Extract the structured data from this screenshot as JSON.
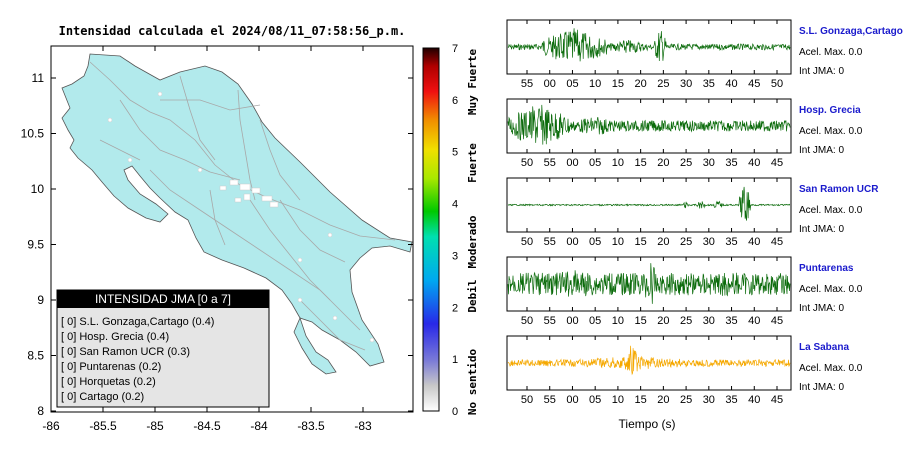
{
  "map": {
    "title": "Intensidad calculada el 2024/08/11_07:58:56_p.m.",
    "x_ticks": [
      "-86",
      "-85.5",
      "-85",
      "-84.5",
      "-84",
      "-83.5",
      "-83"
    ],
    "y_ticks": [
      "11",
      "10.5",
      "10",
      "9.5",
      "9",
      "8.5",
      "8"
    ],
    "land_color": "#b2eaec",
    "legend": {
      "title": "INTENSIDAD JMA [0 a 7]",
      "items": [
        "[ 0]  S.L. Gonzaga,Cartago (0.4)",
        "[ 0]  Hosp. Grecia (0.4)",
        "[ 0]  San Ramon UCR (0.3)",
        "[ 0]  Puntarenas (0.2)",
        "[ 0]  Horquetas (0.2)",
        "[ 0]  Cartago (0.2)"
      ]
    }
  },
  "colorbar": {
    "ticks": [
      "7",
      "6",
      "5",
      "4",
      "3",
      "2",
      "1",
      "0"
    ],
    "labels": [
      "Muy Fuerte",
      "Fuerte",
      "Moderado",
      "Debil",
      "No sentido"
    ]
  },
  "waveforms": {
    "x_title": "Tiempo (s)",
    "stations": [
      {
        "name": "S.L. Gonzaga,Cartago",
        "accel": "Acel. Max. 0.0",
        "jma": "Int JMA: 0",
        "color": "#0b6b0b",
        "ticks": [
          "55",
          "00",
          "05",
          "10",
          "15",
          "20",
          "25",
          "30",
          "35",
          "40",
          "45",
          "50"
        ]
      },
      {
        "name": "Hosp. Grecia",
        "accel": "Acel. Max. 0.0",
        "jma": "Int JMA: 0",
        "color": "#0b6b0b",
        "ticks": [
          "50",
          "55",
          "00",
          "05",
          "10",
          "15",
          "20",
          "25",
          "30",
          "35",
          "40",
          "45"
        ]
      },
      {
        "name": "San Ramon UCR",
        "accel": "Acel. Max. 0.0",
        "jma": "Int JMA: 0",
        "color": "#0b6b0b",
        "ticks": [
          "50",
          "55",
          "00",
          "05",
          "10",
          "15",
          "20",
          "25",
          "30",
          "35",
          "40",
          "45"
        ]
      },
      {
        "name": "Puntarenas",
        "accel": "Acel. Max. 0.0",
        "jma": "Int JMA: 0",
        "color": "#0b6b0b",
        "ticks": [
          "50",
          "55",
          "00",
          "05",
          "10",
          "15",
          "20",
          "25",
          "30",
          "35",
          "40",
          "45"
        ]
      },
      {
        "name": "La Sabana",
        "accel": "Acel. Max. 0.0",
        "jma": "Int JMA: 0",
        "color": "#f5a800",
        "ticks": [
          "50",
          "55",
          "00",
          "05",
          "10",
          "15",
          "20",
          "25",
          "30",
          "35",
          "40",
          "45"
        ]
      }
    ]
  },
  "chart_data": {
    "type": "line",
    "xlabel": "Tiempo (s)",
    "series": [
      {
        "name": "S.L. Gonzaga,Cartago",
        "peak_times_s": [
          5,
          23
        ],
        "acel_max": 0.0,
        "int_jma": 0
      },
      {
        "name": "Hosp. Grecia",
        "peak_times_s": [
          -5
        ],
        "acel_max": 0.0,
        "int_jma": 0
      },
      {
        "name": "San Ramon UCR",
        "peak_times_s": [
          42
        ],
        "acel_max": 0.0,
        "int_jma": 0
      },
      {
        "name": "Puntarenas",
        "peak_times_s": [
          19
        ],
        "acel_max": 0.0,
        "int_jma": 0
      },
      {
        "name": "La Sabana",
        "peak_times_s": [
          13
        ],
        "acel_max": 0.0,
        "int_jma": 0
      }
    ],
    "colorbar_range": [
      0,
      7
    ]
  }
}
